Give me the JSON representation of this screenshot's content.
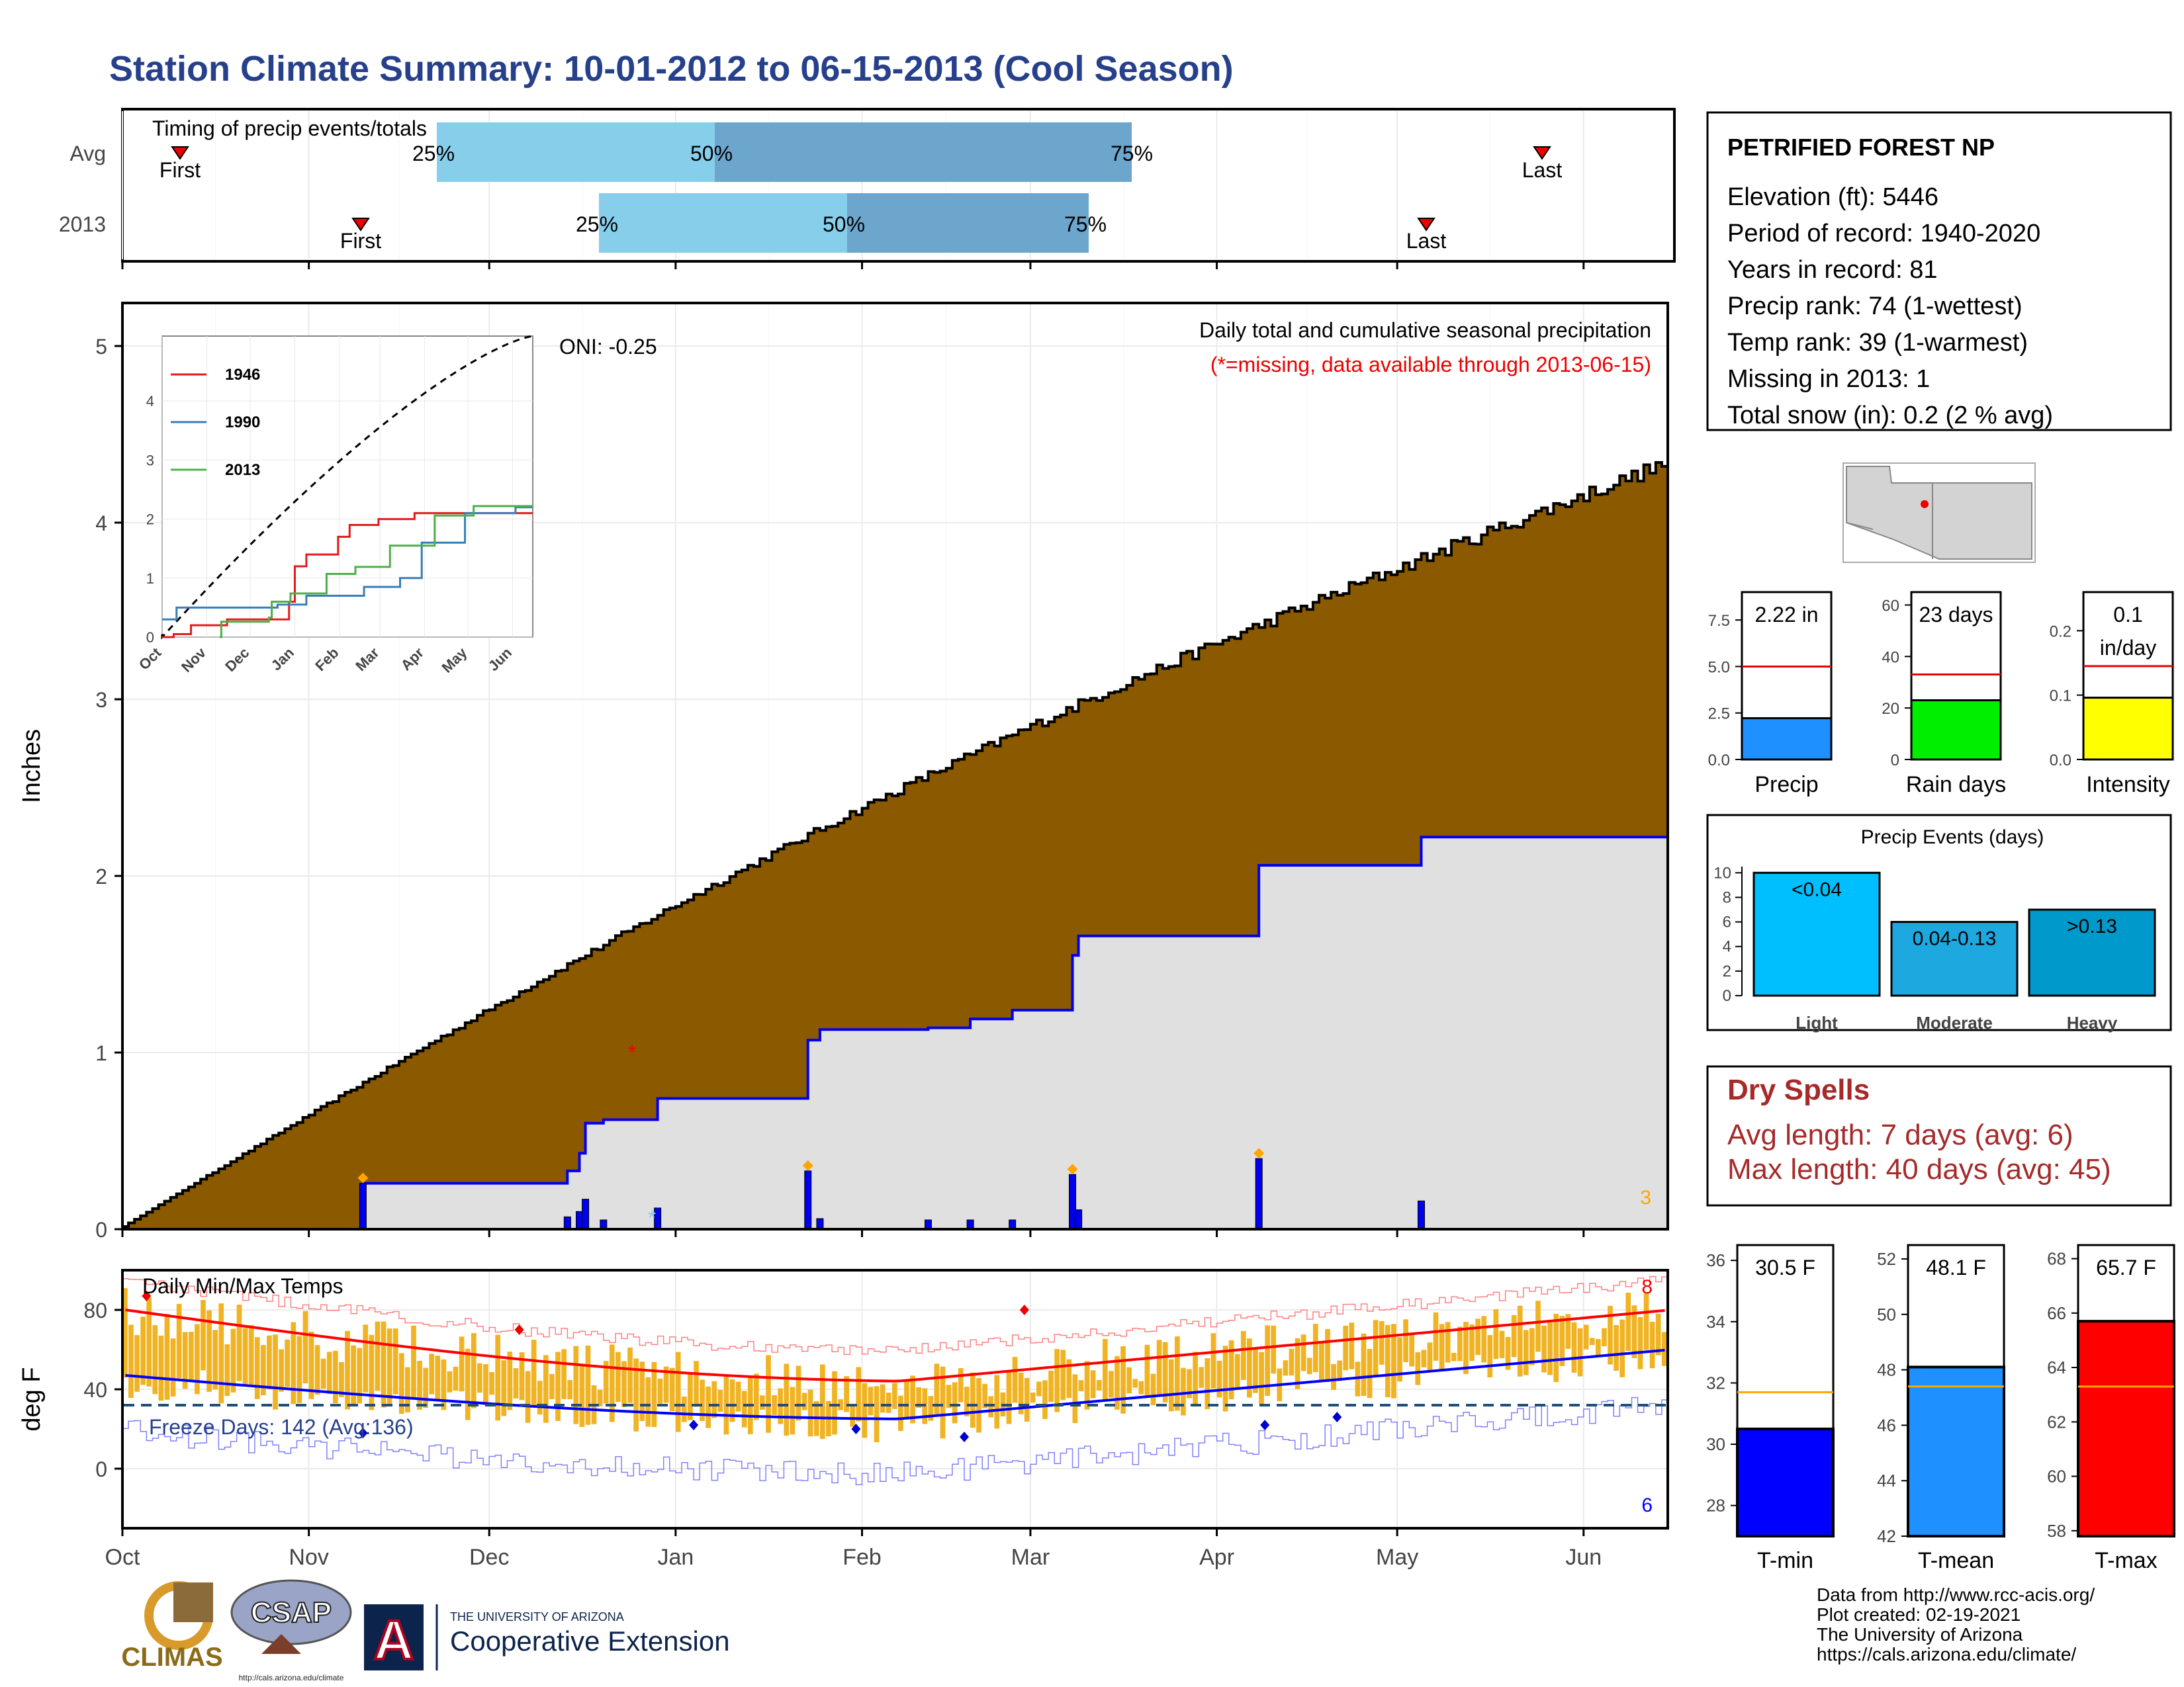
{
  "page_title": "Station Climate Summary: 10-01-2012 to 06-15-2013 (Cool Season)",
  "colors": {
    "title": "#26408b",
    "precip_fill": "#8b5a00",
    "gray_fill": "#e0e0e0",
    "blue_line": "#0000ee",
    "tmax": "#ff0000",
    "tmin": "#0000ff",
    "bars_orange": "#f0b323",
    "dry_red": "#a62a2a",
    "light_blue": "#87ceeb",
    "mid_blue": "#6ca6cd"
  },
  "timing": {
    "title": "Timing of precip events/totals",
    "rows": [
      {
        "label": "Avg",
        "first": "First",
        "last": "Last",
        "p25": "25%",
        "p50": "50%",
        "p75": "75%"
      },
      {
        "label": "2013",
        "first": "First",
        "last": "Last",
        "p25": "25%",
        "p50": "50%",
        "p75": "75%"
      }
    ]
  },
  "station": {
    "name": "PETRIFIED FOREST NP",
    "lines": [
      "Elevation (ft): 5446",
      "Period of record: 1940-2020",
      "Years in record: 81",
      "Precip rank: 74 (1-wettest)",
      "Temp rank: 39 (1-warmest)",
      "Missing in 2013: 1",
      "Total snow (in): 0.2 (2 % avg)"
    ]
  },
  "main_chart": {
    "ylabel": "Inches",
    "caption": "Daily total and cumulative seasonal precipitation",
    "missing_note": "(*=missing, data available through 2013-06-15)",
    "oni": "ONI: -0.25",
    "corner_count": "3",
    "missing_marker": "*"
  },
  "inset": {
    "legend": [
      "1946",
      "1990",
      "2013"
    ],
    "months": [
      "Oct",
      "Nov",
      "Dec",
      "Jan",
      "Feb",
      "Mar",
      "Apr",
      "May",
      "Jun"
    ],
    "yticks": [
      "0",
      "1",
      "2",
      "3",
      "4"
    ]
  },
  "temp_chart": {
    "ylabel": "deg F",
    "title": "Daily Min/Max Temps",
    "freeze": "Freeze Days: 142 (Avg:136)",
    "max_count": "8",
    "min_count": "6"
  },
  "month_labels": [
    "Oct",
    "Nov",
    "Dec",
    "Jan",
    "Feb",
    "Mar",
    "Apr",
    "May",
    "Jun"
  ],
  "summary_bars": [
    {
      "label": "Precip",
      "value_text": "2.22 in",
      "value": 2.22,
      "avg": 5.0,
      "ymax": 9,
      "ticks": [
        "0.0",
        "2.5",
        "5.0",
        "7.5"
      ]
    },
    {
      "label": "Rain days",
      "value_text": "23 days",
      "value": 23,
      "avg": 33,
      "ymax": 65,
      "ticks": [
        "0",
        "20",
        "40",
        "60"
      ]
    },
    {
      "label": "Intensity",
      "value_text": "0.1 in/day",
      "value": 0.096,
      "avg": 0.145,
      "ymax": 0.26,
      "ticks": [
        "0.0",
        "0.1",
        "0.2"
      ]
    }
  ],
  "events": {
    "title": "Precip Events (days)",
    "bars": [
      {
        "label": "Light",
        "text": "<0.04",
        "value": 10
      },
      {
        "label": "Moderate",
        "text": "0.04-0.13",
        "value": 6
      },
      {
        "label": "Heavy",
        "text": ">0.13",
        "value": 7
      }
    ],
    "yticks": [
      "0",
      "2",
      "4",
      "6",
      "8",
      "10"
    ]
  },
  "dry_spells": {
    "title": "Dry Spells",
    "avg": "Avg length: 7 days (avg: 6)",
    "max": "Max length: 40 days (avg: 45)"
  },
  "temp_bars": [
    {
      "label": "T-min",
      "value_text": "30.5 F",
      "value": 30.5,
      "avg": 31.7,
      "min": 27,
      "max": 36.5,
      "ticks": [
        "28",
        "30",
        "32",
        "34",
        "36"
      ]
    },
    {
      "label": "T-mean",
      "value_text": "48.1 F",
      "value": 48.1,
      "avg": 47.4,
      "min": 42,
      "max": 52.5,
      "ticks": [
        "42",
        "44",
        "46",
        "48",
        "50",
        "52"
      ]
    },
    {
      "label": "T-max",
      "value_text": "65.7 F",
      "value": 65.7,
      "avg": 63.3,
      "min": 57.8,
      "max": 68.5,
      "ticks": [
        "58",
        "60",
        "62",
        "64",
        "66",
        "68"
      ]
    }
  ],
  "footer": [
    "Data from http://www.rcc-acis.org/",
    "Plot created: 02-19-2021",
    "The University of Arizona",
    "https://cals.arizona.edu/climate/"
  ],
  "logos": {
    "climas": "CLIMAS",
    "csap": "CSAP",
    "csap_url": "http://cals.arizona.edu/climate",
    "ua_top": "THE UNIVERSITY OF ARIZONA",
    "ua_bottom": "Cooperative Extension",
    "ua_letter": "A"
  },
  "chart_data": {
    "type": "area",
    "x_start": "2012-10-01",
    "x_end": "2013-06-15",
    "cumulative_avg_end": 4.75,
    "cumulative_2013": [
      {
        "date": "2012-10-01",
        "value": 0.0
      },
      {
        "date": "2012-11-10",
        "value": 0.26
      },
      {
        "date": "2012-12-14",
        "value": 0.33
      },
      {
        "date": "2012-12-16",
        "value": 0.43
      },
      {
        "date": "2012-12-17",
        "value": 0.6
      },
      {
        "date": "2012-12-20",
        "value": 0.62
      },
      {
        "date": "2012-12-29",
        "value": 0.74
      },
      {
        "date": "2013-01-23",
        "value": 1.07
      },
      {
        "date": "2013-01-25",
        "value": 1.13
      },
      {
        "date": "2013-02-12",
        "value": 1.14
      },
      {
        "date": "2013-02-19",
        "value": 1.19
      },
      {
        "date": "2013-02-26",
        "value": 1.24
      },
      {
        "date": "2013-03-08",
        "value": 1.55
      },
      {
        "date": "2013-03-09",
        "value": 1.66
      },
      {
        "date": "2013-04-08",
        "value": 2.06
      },
      {
        "date": "2013-05-05",
        "value": 2.22
      },
      {
        "date": "2013-06-15",
        "value": 2.22
      }
    ],
    "ylim": [
      0,
      5.2
    ],
    "temps": {
      "ylim": [
        -30,
        100
      ],
      "freeze_line": 32
    }
  }
}
